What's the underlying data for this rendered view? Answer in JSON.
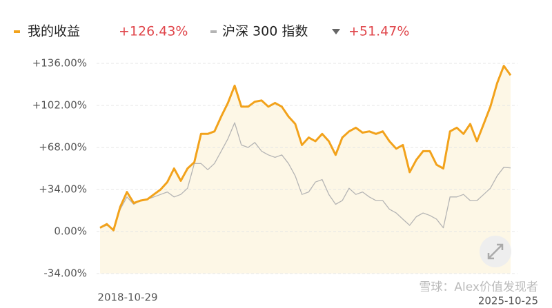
{
  "chart_data": {
    "type": "line",
    "categories": [
      "2018-10-29",
      null,
      null,
      null,
      null,
      null,
      null,
      null,
      null,
      null,
      null,
      null,
      null,
      null,
      null,
      null,
      null,
      null,
      null,
      null,
      null,
      null,
      null,
      null,
      null,
      null,
      null,
      null,
      null,
      null,
      null,
      null,
      null,
      null,
      null,
      null,
      null,
      null,
      null,
      null,
      null,
      null,
      null,
      null,
      null,
      null,
      null,
      null,
      null,
      null,
      null,
      null,
      null,
      null,
      null,
      null,
      null,
      null,
      null,
      null,
      null,
      "2025-10-25"
    ],
    "series": [
      {
        "name": "我的收益",
        "color": "#f2a21b",
        "legend_value": "+126.43%",
        "values": [
          3,
          6,
          1,
          20,
          32,
          23,
          25,
          26,
          30,
          34,
          40,
          51,
          41,
          51,
          56,
          79,
          79,
          81,
          93,
          104,
          118,
          101,
          101,
          105,
          106,
          101,
          104,
          101,
          93,
          87,
          70,
          76,
          73,
          79,
          73,
          62,
          76,
          81,
          84,
          80,
          81,
          79,
          81,
          73,
          67,
          70,
          48,
          58,
          65,
          65,
          54,
          51,
          81,
          84,
          79,
          87,
          73,
          87,
          101,
          120,
          134,
          126.43
        ]
      },
      {
        "name": "沪深 300 指数",
        "color": "#b4b4b4",
        "legend_value": "+51.47%",
        "values": [
          3,
          5,
          2,
          18,
          28,
          22,
          25,
          26,
          28,
          30,
          32,
          28,
          30,
          35,
          55,
          55,
          50,
          55,
          65,
          75,
          88,
          70,
          68,
          72,
          65,
          62,
          60,
          62,
          55,
          45,
          30,
          32,
          40,
          42,
          30,
          22,
          25,
          35,
          30,
          32,
          28,
          25,
          25,
          18,
          15,
          10,
          5,
          12,
          15,
          13,
          10,
          3,
          28,
          28,
          30,
          25,
          25,
          30,
          35,
          45,
          52,
          51.47
        ]
      }
    ],
    "ylim": [
      -34,
      136
    ],
    "yticks": [
      {
        "value": -34,
        "label": "-34.00%"
      },
      {
        "value": 0,
        "label": "0.00%"
      },
      {
        "value": 34,
        "label": "+34.00%"
      },
      {
        "value": 68,
        "label": "+68.00%"
      },
      {
        "value": 102,
        "label": "+102.00%"
      },
      {
        "value": 136,
        "label": "+136.00%"
      }
    ],
    "grid": true,
    "watermark": "雪球：Alex价值发现者"
  }
}
